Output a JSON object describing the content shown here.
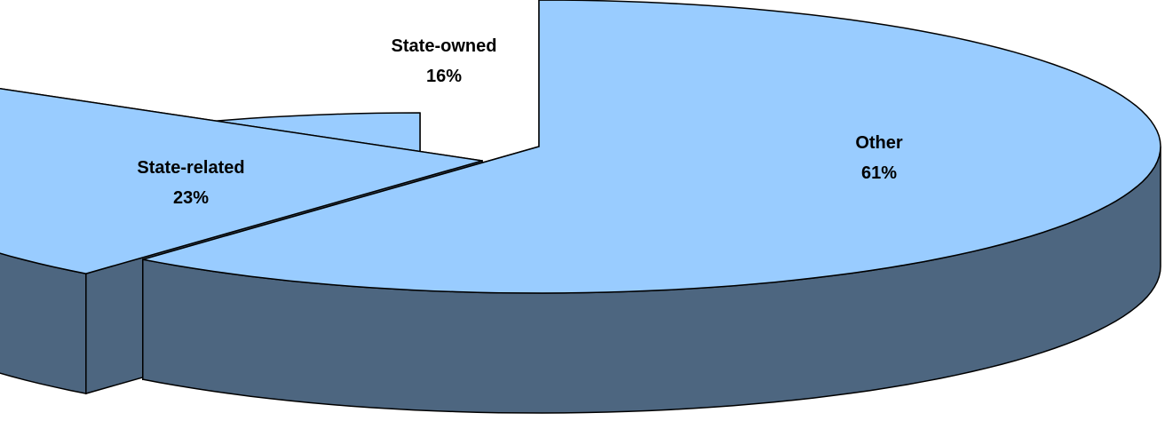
{
  "chart_data": {
    "type": "pie",
    "style": "3d-exploded",
    "title": "",
    "slices": [
      {
        "label": "State-owned",
        "percent_label": "16%",
        "value": 16
      },
      {
        "label": "State-related",
        "percent_label": "23%",
        "value": 23
      },
      {
        "label": "Other",
        "percent_label": "61%",
        "value": 61
      }
    ],
    "colors": {
      "top": "#99ccff",
      "side": "#4d6680",
      "outline": "#000000"
    }
  }
}
